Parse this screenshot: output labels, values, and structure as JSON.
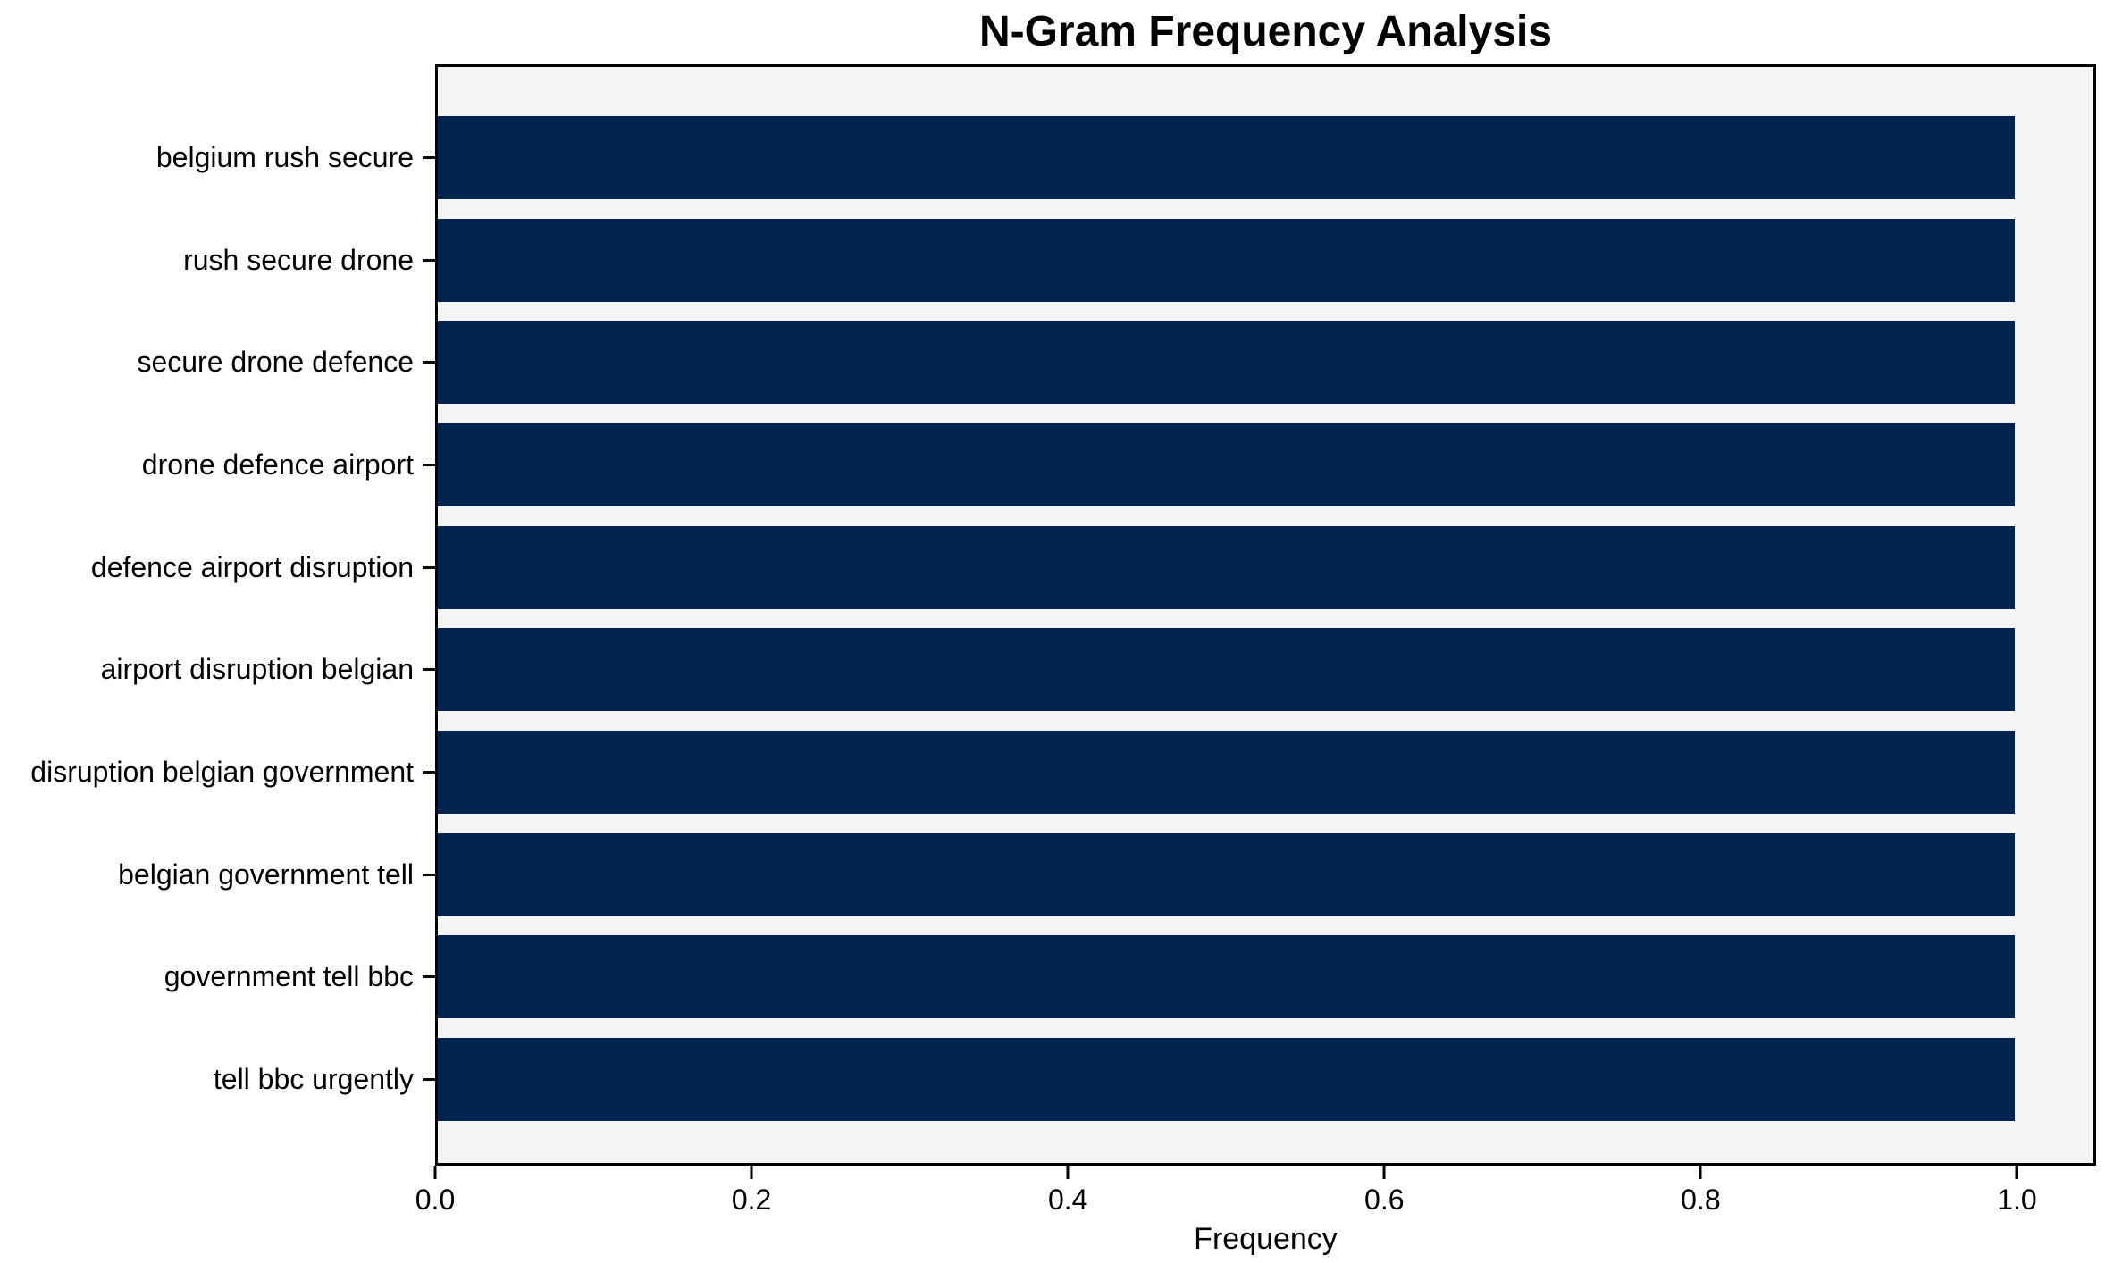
{
  "chart_data": {
    "type": "bar",
    "orientation": "horizontal",
    "title": "N-Gram Frequency Analysis",
    "xlabel": "Frequency",
    "ylabel": "",
    "categories": [
      "belgium rush secure",
      "rush secure drone",
      "secure drone defence",
      "drone defence airport",
      "defence airport disruption",
      "airport disruption belgian",
      "disruption belgian government",
      "belgian government tell",
      "government tell bbc",
      "tell bbc urgently"
    ],
    "values": [
      1.0,
      1.0,
      1.0,
      1.0,
      1.0,
      1.0,
      1.0,
      1.0,
      1.0,
      1.0
    ],
    "xticks": [
      0.0,
      0.2,
      0.4,
      0.6,
      0.8,
      1.0
    ],
    "xlim": [
      0,
      1.05
    ],
    "grid": false,
    "legend": null,
    "colors": {
      "bar": "#02234d",
      "plot_bg": "#f5f5f5",
      "figure_bg": "#ffffff",
      "spine": "#000000",
      "text": "#000000"
    }
  }
}
